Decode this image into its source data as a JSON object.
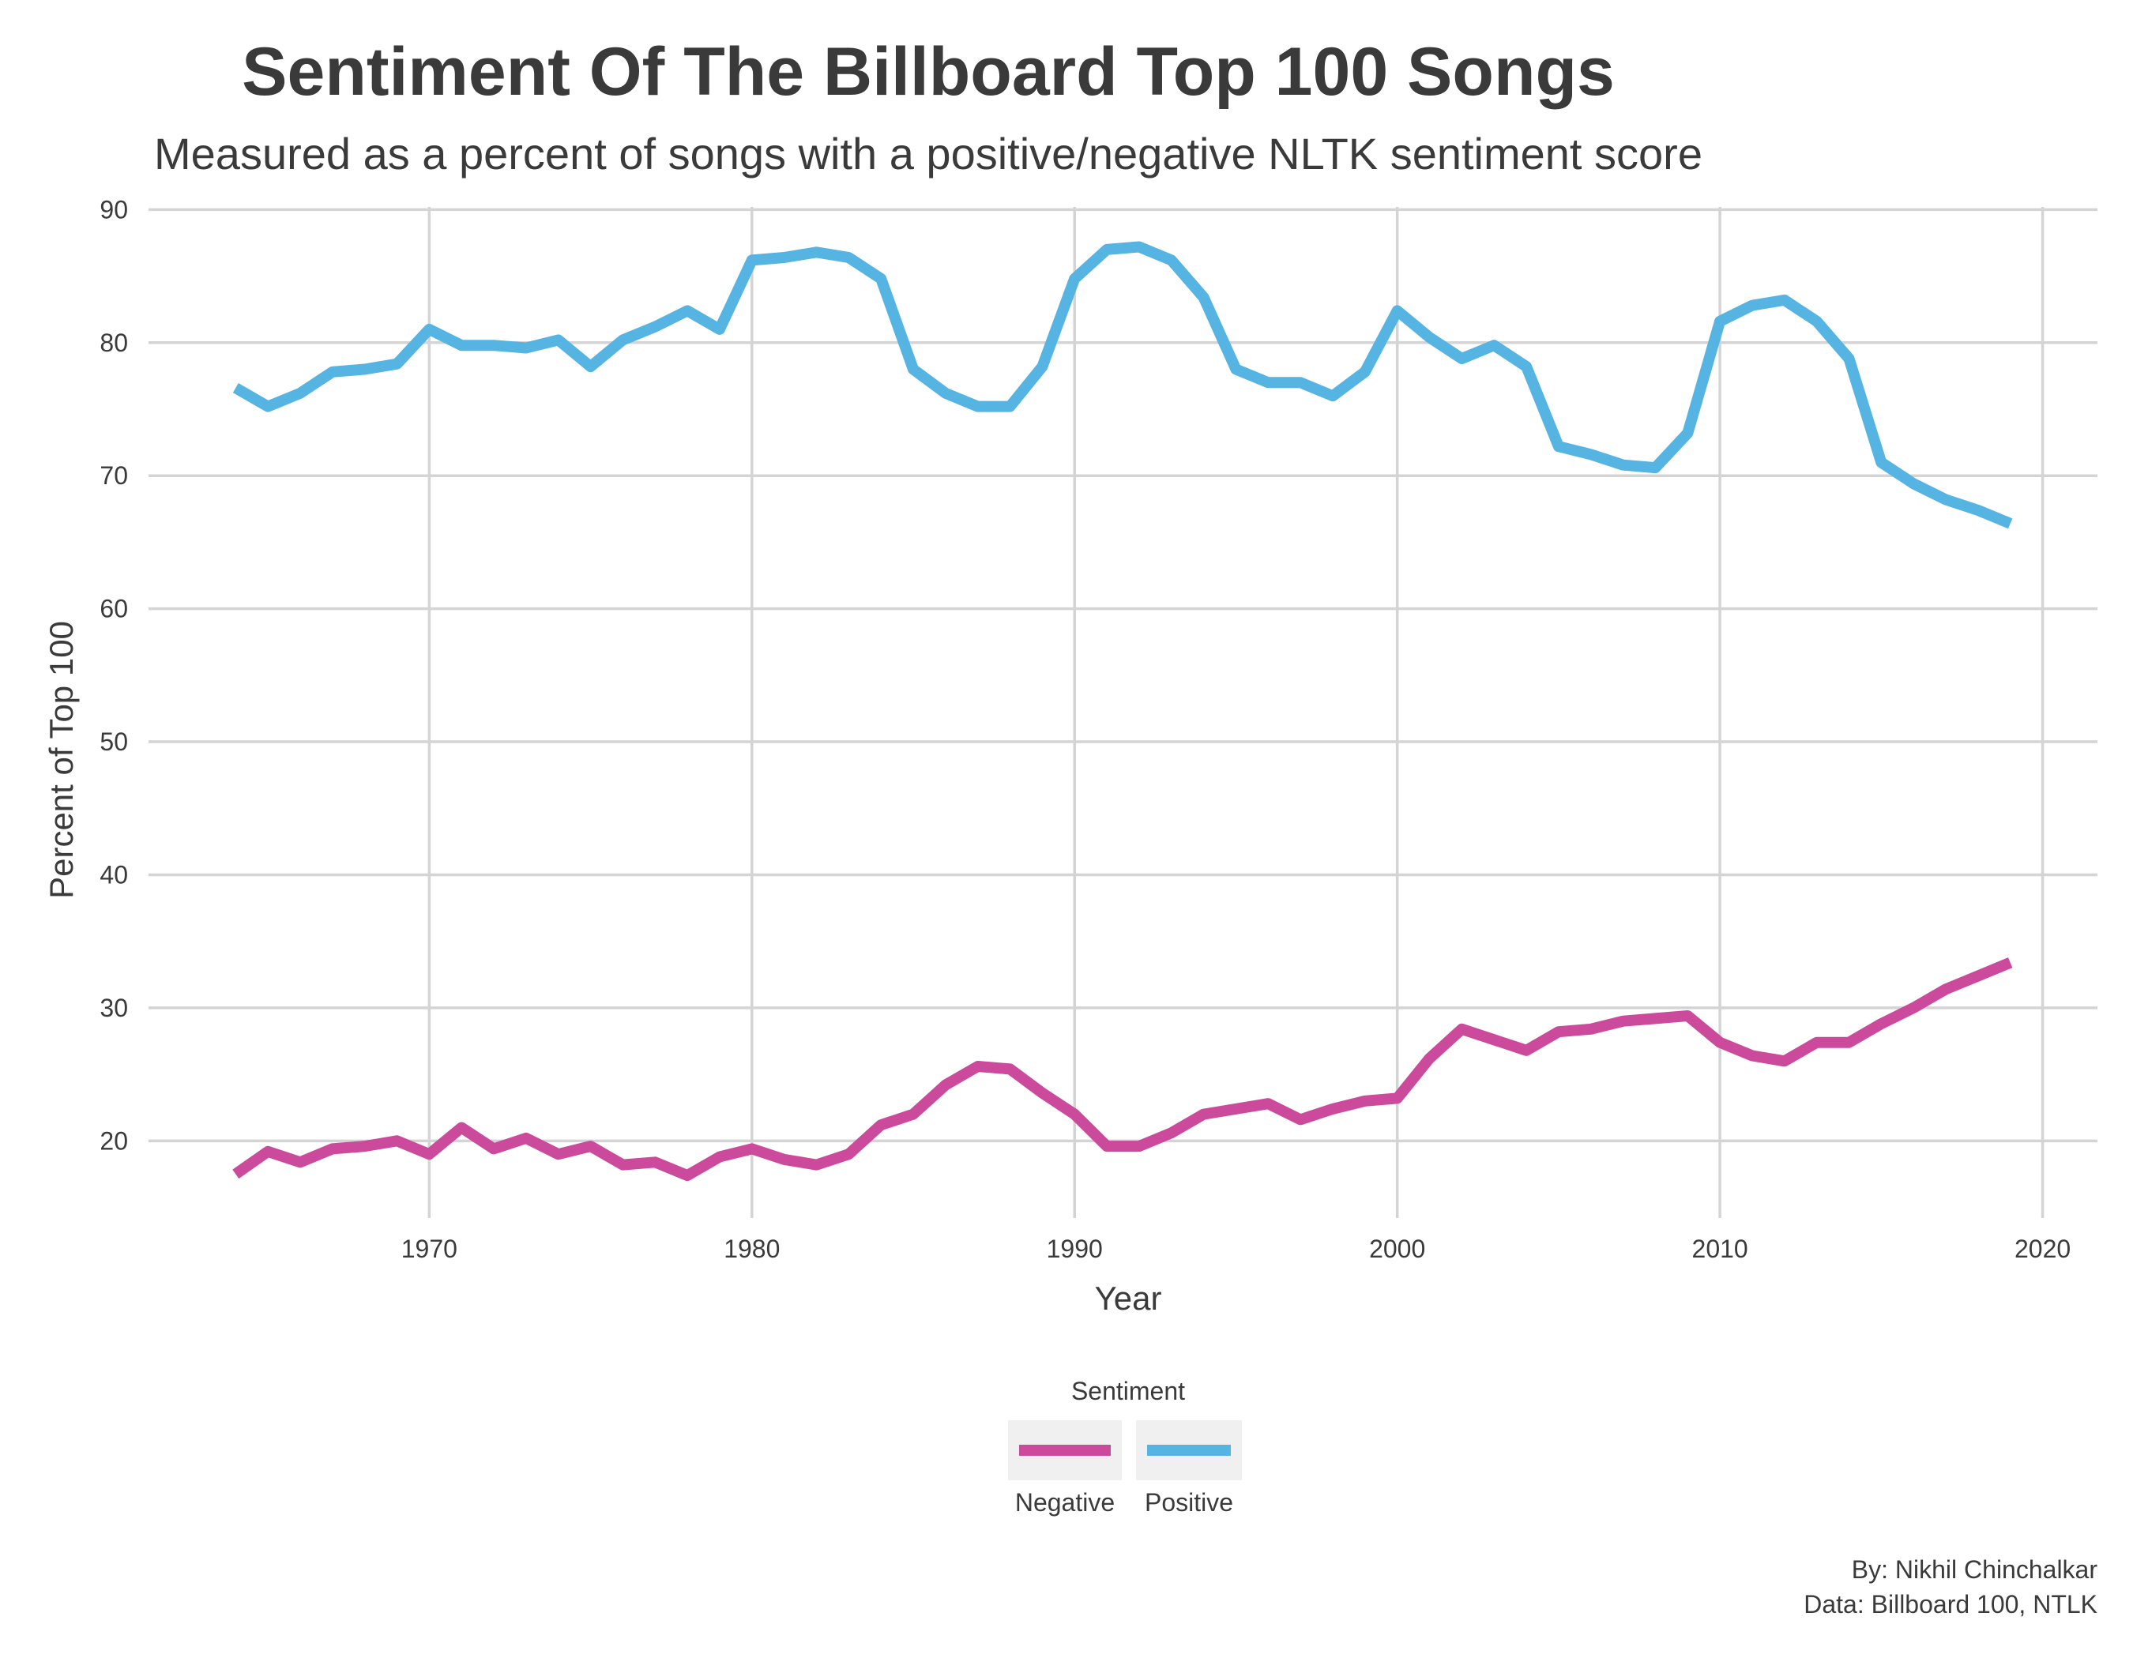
{
  "chart_data": {
    "type": "line",
    "title": "Sentiment Of The Billboard Top 100 Songs",
    "subtitle": "Measured as a percent of songs with a positive/negative NLTK sentiment score",
    "xlabel": "Year",
    "ylabel": "Percent of Top 100",
    "xlim": [
      1961.3,
      2021.7
    ],
    "ylim": [
      14.2,
      90.2
    ],
    "x_ticks": [
      1970,
      1980,
      1990,
      2000,
      2010,
      2020
    ],
    "y_ticks": [
      20,
      30,
      40,
      50,
      60,
      70,
      80,
      90
    ],
    "grid": true,
    "legend": {
      "title": "Sentiment",
      "position": "bottom",
      "entries": [
        "Negative",
        "Positive"
      ]
    },
    "x": [
      1964,
      1965,
      1966,
      1967,
      1968,
      1969,
      1970,
      1971,
      1972,
      1973,
      1974,
      1975,
      1976,
      1977,
      1978,
      1979,
      1980,
      1981,
      1982,
      1983,
      1984,
      1985,
      1986,
      1987,
      1988,
      1989,
      1990,
      1991,
      1992,
      1993,
      1994,
      1995,
      1996,
      1997,
      1998,
      1999,
      2000,
      2001,
      2002,
      2003,
      2004,
      2005,
      2006,
      2007,
      2008,
      2009,
      2010,
      2011,
      2012,
      2013,
      2014,
      2015,
      2016,
      2017,
      2018,
      2019
    ],
    "series": [
      {
        "name": "Negative",
        "color": "#cc4a9c",
        "values": [
          17.5,
          19.2,
          18.4,
          19.4,
          19.6,
          20.0,
          19.0,
          21.0,
          19.4,
          20.2,
          19.0,
          19.6,
          18.2,
          18.4,
          17.4,
          18.8,
          19.4,
          18.6,
          18.2,
          19.0,
          21.2,
          22.0,
          24.2,
          25.6,
          25.4,
          23.6,
          22.0,
          19.6,
          19.6,
          20.6,
          22.0,
          22.4,
          22.8,
          21.6,
          22.4,
          23.0,
          23.2,
          26.2,
          28.4,
          27.6,
          26.8,
          28.2,
          28.4,
          29.0,
          29.2,
          29.4,
          27.4,
          26.4,
          26.0,
          27.4,
          27.4,
          28.8,
          30.0,
          31.4,
          32.4,
          33.4
        ]
      },
      {
        "name": "Positive",
        "color": "#56b4e3",
        "values": [
          76.6,
          75.2,
          76.2,
          77.8,
          78.0,
          78.4,
          81.0,
          79.8,
          79.8,
          79.6,
          80.2,
          78.2,
          80.2,
          81.2,
          82.4,
          81.0,
          86.2,
          86.4,
          86.8,
          86.4,
          84.8,
          78.0,
          76.2,
          75.2,
          75.2,
          78.2,
          84.8,
          87.0,
          87.2,
          86.2,
          83.4,
          78.0,
          77.0,
          77.0,
          76.0,
          77.8,
          82.4,
          80.4,
          78.8,
          79.8,
          78.2,
          72.2,
          71.6,
          70.8,
          70.6,
          73.2,
          81.6,
          82.8,
          83.2,
          81.6,
          78.8,
          71.0,
          69.4,
          68.2,
          67.4,
          66.4
        ]
      }
    ]
  },
  "caption": {
    "line1": "By: Nikhil Chinchalkar",
    "line2": "Data: Billboard 100, NTLK"
  },
  "colors": {
    "grid": "#d4d4d4",
    "text": "#3a3a3a",
    "legend_key_bg": "#f0f0f0"
  }
}
